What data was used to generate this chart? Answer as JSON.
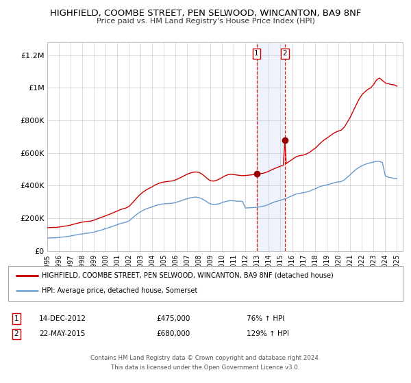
{
  "title": "HIGHFIELD, COOMBE STREET, PEN SELWOOD, WINCANTON, BA9 8NF",
  "subtitle": "Price paid vs. HM Land Registry's House Price Index (HPI)",
  "xlim": [
    1995.0,
    2025.5
  ],
  "ylim": [
    0,
    1280000
  ],
  "yticks": [
    0,
    200000,
    400000,
    600000,
    800000,
    1000000,
    1200000
  ],
  "ytick_labels": [
    "£0",
    "£200K",
    "£400K",
    "£600K",
    "£800K",
    "£1M",
    "£1.2M"
  ],
  "xticks": [
    1995,
    1996,
    1997,
    1998,
    1999,
    2000,
    2001,
    2002,
    2003,
    2004,
    2005,
    2006,
    2007,
    2008,
    2009,
    2010,
    2011,
    2012,
    2013,
    2014,
    2015,
    2016,
    2017,
    2018,
    2019,
    2020,
    2021,
    2022,
    2023,
    2024,
    2025
  ],
  "red_line_color": "#cc0000",
  "blue_line_color": "#6699cc",
  "background_color": "#ffffff",
  "grid_color": "#cccccc",
  "marker_color": "#990000",
  "event1_x": 2012.958,
  "event2_x": 2015.388,
  "event1_y": 475000,
  "event2_y": 680000,
  "event1_label": "14-DEC-2012",
  "event2_label": "22-MAY-2015",
  "event1_price": "£475,000",
  "event2_price": "£680,000",
  "event1_hpi": "76% ↑ HPI",
  "event2_hpi": "129% ↑ HPI",
  "legend_red": "HIGHFIELD, COOMBE STREET, PEN SELWOOD, WINCANTON, BA9 8NF (detached house)",
  "legend_blue": "HPI: Average price, detached house, Somerset",
  "footer1": "Contains HM Land Registry data © Crown copyright and database right 2024.",
  "footer2": "This data is licensed under the Open Government Licence v3.0.",
  "red_hpi_data": [
    [
      1995.0,
      142000
    ],
    [
      1995.25,
      143000
    ],
    [
      1995.5,
      144000
    ],
    [
      1995.75,
      143500
    ],
    [
      1996.0,
      146000
    ],
    [
      1996.25,
      149000
    ],
    [
      1996.5,
      152000
    ],
    [
      1996.75,
      154000
    ],
    [
      1997.0,
      158000
    ],
    [
      1997.25,
      163000
    ],
    [
      1997.5,
      168000
    ],
    [
      1997.75,
      172000
    ],
    [
      1998.0,
      176000
    ],
    [
      1998.25,
      179000
    ],
    [
      1998.5,
      181000
    ],
    [
      1998.75,
      183000
    ],
    [
      1999.0,
      188000
    ],
    [
      1999.25,
      195000
    ],
    [
      1999.5,
      202000
    ],
    [
      1999.75,
      208000
    ],
    [
      2000.0,
      215000
    ],
    [
      2000.25,
      222000
    ],
    [
      2000.5,
      229000
    ],
    [
      2000.75,
      237000
    ],
    [
      2001.0,
      244000
    ],
    [
      2001.25,
      252000
    ],
    [
      2001.5,
      258000
    ],
    [
      2001.75,
      263000
    ],
    [
      2002.0,
      272000
    ],
    [
      2002.25,
      290000
    ],
    [
      2002.5,
      310000
    ],
    [
      2002.75,
      330000
    ],
    [
      2003.0,
      348000
    ],
    [
      2003.25,
      362000
    ],
    [
      2003.5,
      374000
    ],
    [
      2003.75,
      384000
    ],
    [
      2004.0,
      393000
    ],
    [
      2004.25,
      404000
    ],
    [
      2004.5,
      412000
    ],
    [
      2004.75,
      418000
    ],
    [
      2005.0,
      422000
    ],
    [
      2005.25,
      425000
    ],
    [
      2005.5,
      427000
    ],
    [
      2005.75,
      429000
    ],
    [
      2006.0,
      435000
    ],
    [
      2006.25,
      443000
    ],
    [
      2006.5,
      452000
    ],
    [
      2006.75,
      461000
    ],
    [
      2007.0,
      470000
    ],
    [
      2007.25,
      477000
    ],
    [
      2007.5,
      482000
    ],
    [
      2007.75,
      484000
    ],
    [
      2008.0,
      481000
    ],
    [
      2008.25,
      472000
    ],
    [
      2008.5,
      458000
    ],
    [
      2008.75,
      442000
    ],
    [
      2009.0,
      430000
    ],
    [
      2009.25,
      428000
    ],
    [
      2009.5,
      432000
    ],
    [
      2009.75,
      440000
    ],
    [
      2010.0,
      450000
    ],
    [
      2010.25,
      460000
    ],
    [
      2010.5,
      467000
    ],
    [
      2010.75,
      470000
    ],
    [
      2011.0,
      468000
    ],
    [
      2011.25,
      465000
    ],
    [
      2011.5,
      463000
    ],
    [
      2011.75,
      461000
    ],
    [
      2012.0,
      462000
    ],
    [
      2012.25,
      464000
    ],
    [
      2012.5,
      466000
    ],
    [
      2012.75,
      468000
    ],
    [
      2012.958,
      475000
    ],
    [
      2013.0,
      470000
    ],
    [
      2013.25,
      473000
    ],
    [
      2013.5,
      476000
    ],
    [
      2013.75,
      481000
    ],
    [
      2014.0,
      488000
    ],
    [
      2014.25,
      497000
    ],
    [
      2014.5,
      505000
    ],
    [
      2014.75,
      512000
    ],
    [
      2015.0,
      519000
    ],
    [
      2015.25,
      526000
    ],
    [
      2015.388,
      680000
    ],
    [
      2015.5,
      535000
    ],
    [
      2015.75,
      548000
    ],
    [
      2016.0,
      560000
    ],
    [
      2016.25,
      573000
    ],
    [
      2016.5,
      581000
    ],
    [
      2016.75,
      585000
    ],
    [
      2017.0,
      588000
    ],
    [
      2017.25,
      595000
    ],
    [
      2017.5,
      604000
    ],
    [
      2017.75,
      618000
    ],
    [
      2018.0,
      630000
    ],
    [
      2018.25,
      648000
    ],
    [
      2018.5,
      665000
    ],
    [
      2018.75,
      680000
    ],
    [
      2019.0,
      692000
    ],
    [
      2019.25,
      705000
    ],
    [
      2019.5,
      718000
    ],
    [
      2019.75,
      728000
    ],
    [
      2020.0,
      735000
    ],
    [
      2020.25,
      742000
    ],
    [
      2020.5,
      760000
    ],
    [
      2020.75,
      790000
    ],
    [
      2021.0,
      820000
    ],
    [
      2021.25,
      858000
    ],
    [
      2021.5,
      895000
    ],
    [
      2021.75,
      930000
    ],
    [
      2022.0,
      958000
    ],
    [
      2022.25,
      975000
    ],
    [
      2022.5,
      990000
    ],
    [
      2022.75,
      1000000
    ],
    [
      2023.0,
      1020000
    ],
    [
      2023.25,
      1048000
    ],
    [
      2023.5,
      1060000
    ],
    [
      2023.75,
      1045000
    ],
    [
      2024.0,
      1030000
    ],
    [
      2024.25,
      1025000
    ],
    [
      2024.5,
      1020000
    ],
    [
      2024.75,
      1018000
    ],
    [
      2025.0,
      1010000
    ]
  ],
  "blue_hpi_data": [
    [
      1995.0,
      78000
    ],
    [
      1995.25,
      79000
    ],
    [
      1995.5,
      80000
    ],
    [
      1995.75,
      80500
    ],
    [
      1996.0,
      82000
    ],
    [
      1996.25,
      84000
    ],
    [
      1996.5,
      86000
    ],
    [
      1996.75,
      88000
    ],
    [
      1997.0,
      91000
    ],
    [
      1997.25,
      95000
    ],
    [
      1997.5,
      98000
    ],
    [
      1997.75,
      101000
    ],
    [
      1998.0,
      104000
    ],
    [
      1998.25,
      107000
    ],
    [
      1998.5,
      109000
    ],
    [
      1998.75,
      111000
    ],
    [
      1999.0,
      115000
    ],
    [
      1999.25,
      120000
    ],
    [
      1999.5,
      125000
    ],
    [
      1999.75,
      130000
    ],
    [
      2000.0,
      136000
    ],
    [
      2000.25,
      142000
    ],
    [
      2000.5,
      148000
    ],
    [
      2000.75,
      154000
    ],
    [
      2001.0,
      160000
    ],
    [
      2001.25,
      167000
    ],
    [
      2001.5,
      172000
    ],
    [
      2001.75,
      176000
    ],
    [
      2002.0,
      183000
    ],
    [
      2002.25,
      198000
    ],
    [
      2002.5,
      214000
    ],
    [
      2002.75,
      228000
    ],
    [
      2003.0,
      240000
    ],
    [
      2003.25,
      250000
    ],
    [
      2003.5,
      258000
    ],
    [
      2003.75,
      264000
    ],
    [
      2004.0,
      270000
    ],
    [
      2004.25,
      277000
    ],
    [
      2004.5,
      282000
    ],
    [
      2004.75,
      286000
    ],
    [
      2005.0,
      288000
    ],
    [
      2005.25,
      290000
    ],
    [
      2005.5,
      291000
    ],
    [
      2005.75,
      292000
    ],
    [
      2006.0,
      296000
    ],
    [
      2006.25,
      302000
    ],
    [
      2006.5,
      308000
    ],
    [
      2006.75,
      314000
    ],
    [
      2007.0,
      320000
    ],
    [
      2007.25,
      325000
    ],
    [
      2007.5,
      328000
    ],
    [
      2007.75,
      330000
    ],
    [
      2008.0,
      327000
    ],
    [
      2008.25,
      320000
    ],
    [
      2008.5,
      310000
    ],
    [
      2008.75,
      298000
    ],
    [
      2009.0,
      288000
    ],
    [
      2009.25,
      284000
    ],
    [
      2009.5,
      285000
    ],
    [
      2009.75,
      289000
    ],
    [
      2010.0,
      296000
    ],
    [
      2010.25,
      302000
    ],
    [
      2010.5,
      306000
    ],
    [
      2010.75,
      308000
    ],
    [
      2011.0,
      307000
    ],
    [
      2011.25,
      305000
    ],
    [
      2011.5,
      304000
    ],
    [
      2011.75,
      303000
    ],
    [
      2012.0,
      263000
    ],
    [
      2012.25,
      264000
    ],
    [
      2012.5,
      265000
    ],
    [
      2012.75,
      266000
    ],
    [
      2013.0,
      268000
    ],
    [
      2013.25,
      270000
    ],
    [
      2013.5,
      273000
    ],
    [
      2013.75,
      278000
    ],
    [
      2014.0,
      285000
    ],
    [
      2014.25,
      293000
    ],
    [
      2014.5,
      300000
    ],
    [
      2014.75,
      305000
    ],
    [
      2015.0,
      310000
    ],
    [
      2015.25,
      316000
    ],
    [
      2015.5,
      322000
    ],
    [
      2015.75,
      330000
    ],
    [
      2016.0,
      338000
    ],
    [
      2016.25,
      346000
    ],
    [
      2016.5,
      351000
    ],
    [
      2016.75,
      354000
    ],
    [
      2017.0,
      357000
    ],
    [
      2017.25,
      361000
    ],
    [
      2017.5,
      366000
    ],
    [
      2017.75,
      374000
    ],
    [
      2018.0,
      381000
    ],
    [
      2018.25,
      390000
    ],
    [
      2018.5,
      397000
    ],
    [
      2018.75,
      401000
    ],
    [
      2019.0,
      405000
    ],
    [
      2019.25,
      410000
    ],
    [
      2019.5,
      415000
    ],
    [
      2019.75,
      420000
    ],
    [
      2020.0,
      423000
    ],
    [
      2020.25,
      426000
    ],
    [
      2020.5,
      436000
    ],
    [
      2020.75,
      452000
    ],
    [
      2021.0,
      468000
    ],
    [
      2021.25,
      485000
    ],
    [
      2021.5,
      500000
    ],
    [
      2021.75,
      512000
    ],
    [
      2022.0,
      522000
    ],
    [
      2022.25,
      530000
    ],
    [
      2022.5,
      536000
    ],
    [
      2022.75,
      540000
    ],
    [
      2023.0,
      545000
    ],
    [
      2023.25,
      550000
    ],
    [
      2023.5,
      548000
    ],
    [
      2023.75,
      542000
    ],
    [
      2024.0,
      460000
    ],
    [
      2024.25,
      452000
    ],
    [
      2024.5,
      448000
    ],
    [
      2024.75,
      445000
    ],
    [
      2025.0,
      443000
    ]
  ]
}
